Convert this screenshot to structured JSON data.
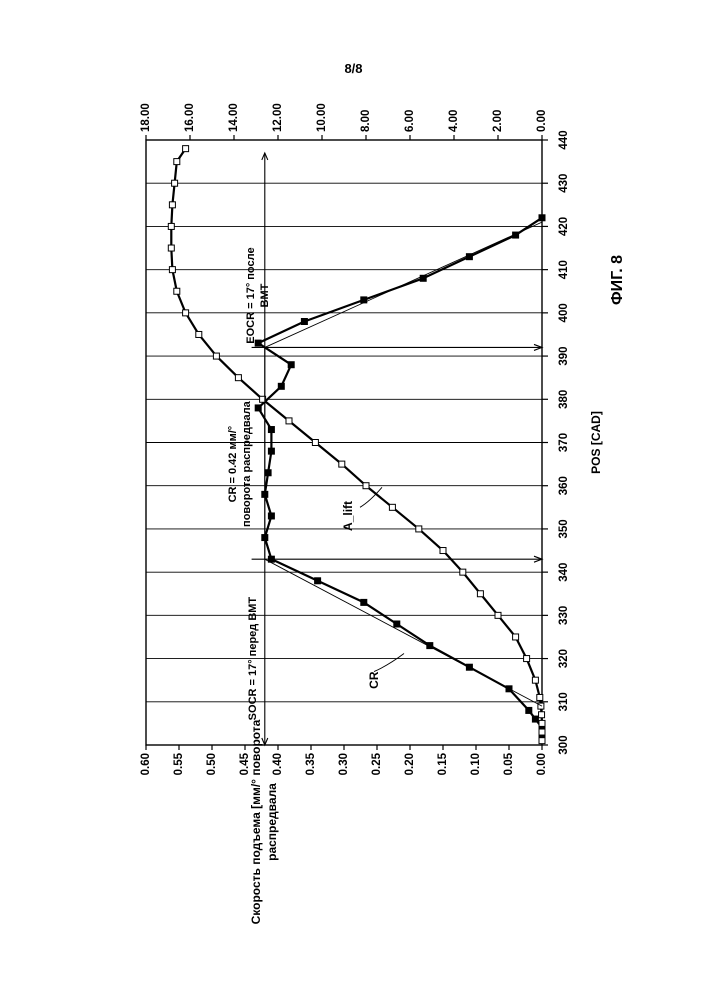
{
  "page_number": "8/8",
  "figure_label": "ФИГ. 8",
  "chart_data": {
    "type": "line",
    "xlabel": "POS [CAD]",
    "ylabel_left": "Скорость подъема [мм/° поворота распредвала",
    "ylabel_left_line1": "Скорость подъема [мм/° поворота",
    "ylabel_left_line2": "распредвала",
    "xlim": [
      300,
      440
    ],
    "ylim_left": [
      0,
      0.6
    ],
    "ylim_right": [
      0,
      18
    ],
    "x_ticks": [
      "300",
      "310",
      "320",
      "330",
      "340",
      "350",
      "360",
      "370",
      "380",
      "390",
      "400",
      "410",
      "420",
      "430",
      "440"
    ],
    "y_ticks_left": [
      "0.00",
      "0.05",
      "0.10",
      "0.15",
      "0.20",
      "0.25",
      "0.30",
      "0.35",
      "0.40",
      "0.45",
      "0.50",
      "0.55",
      "0.60"
    ],
    "y_ticks_right": [
      "0.00",
      "2.00",
      "4.00",
      "6.00",
      "8.00",
      "10.00",
      "12.00",
      "14.00",
      "16.00",
      "18.00"
    ],
    "grid": true,
    "series": [
      {
        "name": "CR",
        "axis": "left",
        "marker": "filled-square",
        "x": [
          302,
          304,
          306,
          308,
          313,
          318,
          323,
          328,
          333,
          338,
          343,
          348,
          353,
          358,
          363,
          368,
          373,
          378,
          383,
          388,
          393,
          398,
          403,
          408,
          413,
          418,
          422
        ],
        "y": [
          0.0,
          0.0,
          0.01,
          0.02,
          0.05,
          0.11,
          0.17,
          0.22,
          0.27,
          0.34,
          0.41,
          0.42,
          0.41,
          0.42,
          0.415,
          0.41,
          0.41,
          0.43,
          0.395,
          0.38,
          0.43,
          0.36,
          0.27,
          0.18,
          0.11,
          0.04,
          0.0
        ]
      },
      {
        "name": "A_lift",
        "axis": "right",
        "marker": "open-square",
        "x": [
          301,
          303,
          305,
          307,
          309,
          311,
          315,
          320,
          325,
          330,
          335,
          340,
          345,
          350,
          355,
          360,
          365,
          370,
          375,
          380,
          385,
          390,
          395,
          400,
          405,
          410,
          415,
          420,
          425,
          430,
          435,
          438
        ],
        "y": [
          0.0,
          0.0,
          0.0,
          0.02,
          0.05,
          0.1,
          0.3,
          0.7,
          1.2,
          2.0,
          2.8,
          3.6,
          4.5,
          5.6,
          6.8,
          8.0,
          9.1,
          10.3,
          11.5,
          12.7,
          13.8,
          14.8,
          15.6,
          16.2,
          16.6,
          16.8,
          16.85,
          16.85,
          16.8,
          16.7,
          16.6,
          16.2
        ]
      },
      {
        "name": "",
        "axis": "left",
        "marker": "none",
        "style": "thin",
        "x": [
          309,
          343,
          392,
          421
        ],
        "y": [
          0.0,
          0.42,
          0.42,
          0.0
        ]
      }
    ],
    "annotations": {
      "socr": "SOCR = 17° перед ВМТ",
      "cr_line1": "CR = 0.42 мм/°",
      "cr_line2": "поворота распредвала",
      "eocr_line1": "EOCR = 17° после",
      "eocr_line2": "ВМТ",
      "cr_callout": "CR",
      "alift_callout": "A_lift"
    }
  }
}
